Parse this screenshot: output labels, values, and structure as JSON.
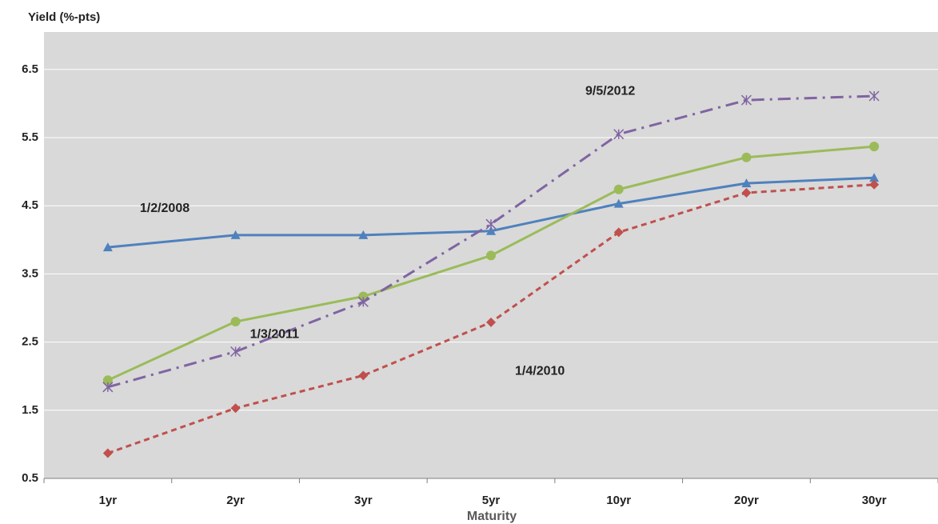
{
  "chart_data": {
    "type": "line",
    "title": "",
    "xlabel": "Maturity",
    "ylabel": "Yield (%-pts)",
    "categories": [
      "1yr",
      "2yr",
      "3yr",
      "5yr",
      "10yr",
      "20yr",
      "30yr"
    ],
    "ylim": [
      0.5,
      7.0
    ],
    "yticks": [
      "0.5",
      "1.5",
      "2.5",
      "3.5",
      "4.5",
      "5.5",
      "6.5"
    ],
    "grid": true,
    "legend": "none",
    "background_color": "#d9d9d9",
    "series": [
      {
        "name": "1/2/2008",
        "values": [
          3.89,
          4.07,
          4.07,
          4.13,
          4.53,
          4.83,
          4.91
        ],
        "color": "#4f81bd",
        "line_style": "solid",
        "marker": "triangle"
      },
      {
        "name": "1/4/2010",
        "values": [
          0.87,
          1.53,
          2.01,
          2.79,
          4.11,
          4.69,
          4.81
        ],
        "color": "#c0504d",
        "line_style": "dashed",
        "marker": "diamond"
      },
      {
        "name": "1/3/2011",
        "values": [
          1.94,
          2.8,
          3.17,
          3.77,
          4.74,
          5.21,
          5.37
        ],
        "color": "#9bbb59",
        "line_style": "solid",
        "marker": "circle"
      },
      {
        "name": "9/5/2012",
        "values": [
          1.84,
          2.36,
          3.09,
          4.23,
          5.55,
          6.05,
          6.11
        ],
        "color": "#8064a2",
        "line_style": "dash-dot",
        "marker": "asterisk"
      }
    ],
    "annotations": [
      {
        "text": "1/2/2008",
        "x": "1yr",
        "y": 4.41
      },
      {
        "text": "1/3/2011",
        "x": "2yr",
        "y": 2.56
      },
      {
        "text": "1/4/2010",
        "x": "5yr",
        "y": 2.02
      },
      {
        "text": "9/5/2012",
        "x": "5yr",
        "y": 6.13
      }
    ]
  }
}
